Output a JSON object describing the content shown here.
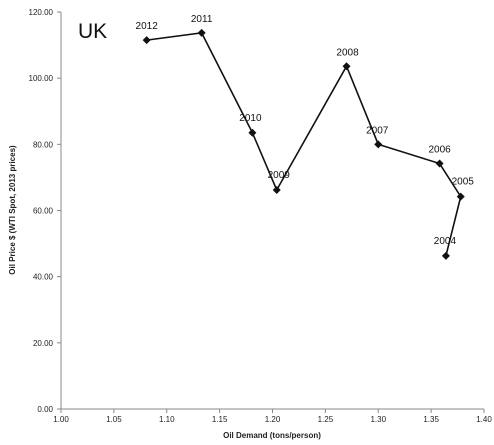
{
  "chart_data": {
    "type": "line",
    "panel_label": "UK",
    "xlabel": "Oil Demand (tons/person)",
    "ylabel": "Oil Price $ (WTI Spot, 2013 prices)",
    "xlim": [
      1.0,
      1.4
    ],
    "ylim": [
      0,
      120
    ],
    "x_ticks": [
      "1.00",
      "1.05",
      "1.10",
      "1.15",
      "1.20",
      "1.25",
      "1.30",
      "1.35",
      "1.40"
    ],
    "y_ticks": [
      "0.00",
      "20.00",
      "40.00",
      "60.00",
      "80.00",
      "100.00",
      "120.00"
    ],
    "grid": false,
    "marker": "diamond",
    "color": "#111111",
    "points": [
      {
        "label": "2012",
        "x": 1.081,
        "y": 111.5
      },
      {
        "label": "2011",
        "x": 1.133,
        "y": 113.7
      },
      {
        "label": "2010",
        "x": 1.181,
        "y": 83.5
      },
      {
        "label": "2009",
        "x": 1.204,
        "y": 66.2
      },
      {
        "label": "2008",
        "x": 1.27,
        "y": 103.6
      },
      {
        "label": "2007",
        "x": 1.3,
        "y": 80.0
      },
      {
        "label": "2006",
        "x": 1.358,
        "y": 74.2
      },
      {
        "label": "2005",
        "x": 1.378,
        "y": 64.2
      },
      {
        "label": "2004",
        "x": 1.364,
        "y": 46.3
      }
    ]
  }
}
